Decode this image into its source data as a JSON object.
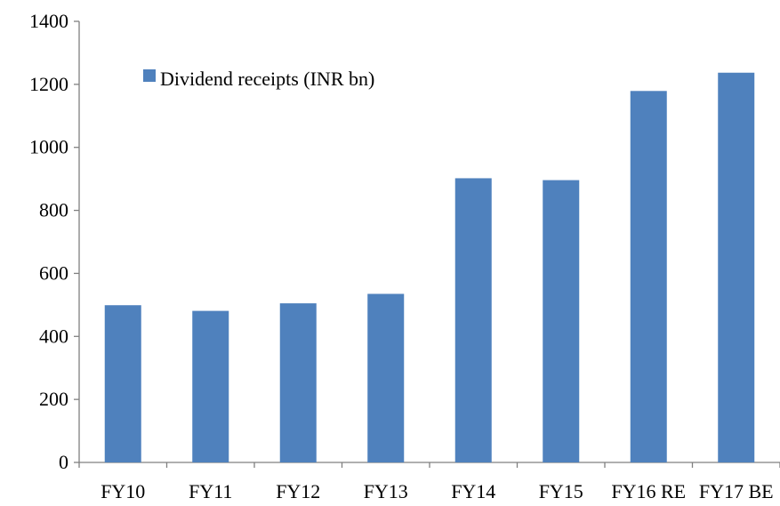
{
  "chart_data": {
    "type": "bar",
    "categories": [
      "FY10",
      "FY11",
      "FY12",
      "FY13",
      "FY14",
      "FY15",
      "FY16 RE",
      "FY17 BE"
    ],
    "series": [
      {
        "name": "Dividend receipts (INR bn)",
        "values": [
          499,
          481,
          505,
          535,
          902,
          896,
          1179,
          1237
        ],
        "color": "#4F81BD"
      }
    ],
    "title": "",
    "xlabel": "",
    "ylabel": "",
    "ylim": [
      0,
      1400
    ],
    "yticks": [
      0,
      200,
      400,
      600,
      800,
      1000,
      1200,
      1400
    ],
    "grid": false,
    "legend": {
      "placement": "top-left",
      "label": "Dividend receipts (INR bn)"
    }
  }
}
